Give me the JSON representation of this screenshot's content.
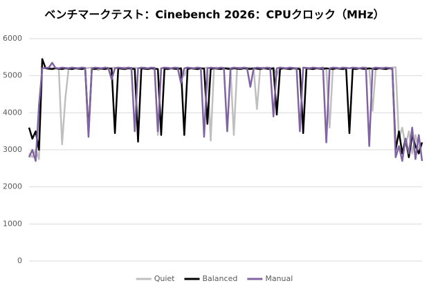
{
  "chart_data": {
    "type": "line",
    "title": "ベンチマークテスト：Cinebench 2026：CPUクロック（MHz）",
    "ylim": [
      0,
      6000
    ],
    "yticks": [
      0,
      1000,
      2000,
      3000,
      4000,
      5000,
      6000
    ],
    "grid": true,
    "legend": "bottom",
    "series": [
      {
        "name": "Quiet",
        "color": "#bfbfbf",
        "values": [
          2900,
          2800,
          3000,
          2750,
          5200,
          5210,
          5220,
          5200,
          5210,
          5180,
          3150,
          4400,
          5210,
          5220,
          5200,
          5210,
          5220,
          5200,
          5210,
          5220,
          5200,
          5150,
          5210,
          5220,
          5200,
          5210,
          5220,
          5200,
          5210,
          5220,
          5200,
          5210,
          5220,
          5200,
          5210,
          5220,
          5200,
          5210,
          5220,
          3400,
          5200,
          5210,
          5220,
          5200,
          5210,
          5220,
          5200,
          5000,
          5220,
          5200,
          5210,
          5220,
          5200,
          5210,
          5220,
          3250,
          5210,
          5220,
          5200,
          5210,
          5220,
          5200,
          3400,
          5210,
          5220,
          5200,
          5210,
          5220,
          5200,
          4100,
          5210,
          5220,
          5200,
          5210,
          5220,
          5000,
          5220,
          5200,
          5210,
          5220,
          5200,
          5210,
          5220,
          3600,
          5200,
          5210,
          5220,
          5200,
          5210,
          5220,
          5200,
          3600,
          5210,
          5220,
          5200,
          5210,
          5220,
          5200,
          5210,
          5220,
          5200,
          5210,
          5220,
          5200,
          4050,
          5200,
          5210,
          5220,
          5200,
          5210,
          5220,
          5230,
          3300,
          3600,
          3100,
          3500,
          2900,
          3400,
          3000,
          3200
        ]
      },
      {
        "name": "Balanced",
        "color": "#000000",
        "values": [
          3600,
          3300,
          3500,
          3000,
          5450,
          5200,
          5190,
          5180,
          5200,
          5190,
          5180,
          5200,
          5190,
          5180,
          5200,
          5190,
          5180,
          5200,
          3450,
          5190,
          5180,
          5200,
          5190,
          5180,
          5200,
          5190,
          3450,
          5200,
          5190,
          5180,
          5200,
          5190,
          5180,
          3220,
          5200,
          5190,
          5180,
          5200,
          5190,
          5180,
          3400,
          5190,
          5180,
          5200,
          5190,
          5180,
          5200,
          3400,
          5180,
          5200,
          5190,
          5180,
          5200,
          5190,
          3700,
          5180,
          5200,
          5190,
          5180,
          5200,
          5190,
          5180,
          5200,
          5190,
          5180,
          5200,
          5190,
          5180,
          5200,
          5190,
          5180,
          5200,
          5190,
          5180,
          5200,
          3950,
          5180,
          5200,
          5190,
          5180,
          5200,
          5190,
          5180,
          3450,
          5200,
          5190,
          5180,
          5200,
          5190,
          5180,
          5200,
          5190,
          5180,
          5200,
          5190,
          5180,
          5200,
          3450,
          5190,
          5180,
          5200,
          5190,
          5180,
          5200,
          5190,
          5180,
          5200,
          5190,
          5180,
          5200,
          5190,
          3000,
          3500,
          2900,
          3300,
          2800,
          3400,
          3100,
          2900,
          3200
        ]
      },
      {
        "name": "Manual",
        "color": "#8064a2",
        "values": [
          2800,
          3000,
          2700,
          4200,
          5200,
          5210,
          5220,
          5350,
          5210,
          5200,
          5220,
          5210,
          5200,
          5220,
          5210,
          5200,
          5220,
          5210,
          3350,
          5200,
          5220,
          5210,
          5200,
          5220,
          5210,
          4900,
          5200,
          5220,
          5210,
          5200,
          5220,
          5210,
          3500,
          5200,
          5220,
          5210,
          5200,
          5220,
          5210,
          3500,
          5200,
          5220,
          5210,
          5200,
          5220,
          5210,
          4800,
          5200,
          5220,
          5210,
          5200,
          5220,
          5210,
          3350,
          5200,
          5220,
          5210,
          5200,
          5220,
          5210,
          3500,
          5200,
          5220,
          5210,
          5200,
          5220,
          5210,
          4700,
          5200,
          5220,
          5210,
          5200,
          5220,
          5210,
          3900,
          5200,
          5220,
          5210,
          5200,
          5220,
          5210,
          5200,
          3500,
          5220,
          5210,
          5200,
          5220,
          5210,
          5200,
          5220,
          3200,
          5200,
          5220,
          5210,
          5200,
          5220,
          5210,
          5200,
          5220,
          5210,
          5200,
          5220,
          5210,
          3100,
          5200,
          5220,
          5210,
          5200,
          5220,
          5210,
          5200,
          2800,
          3100,
          2700,
          3300,
          2900,
          3600,
          2750,
          3400,
          2700
        ]
      }
    ]
  }
}
